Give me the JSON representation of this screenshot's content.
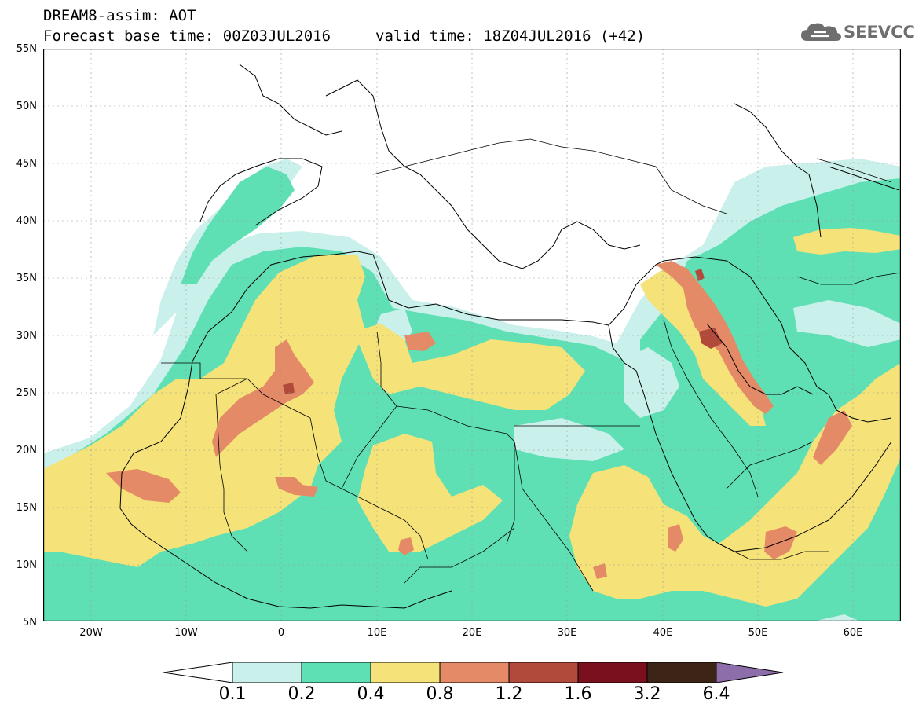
{
  "header": {
    "title": "DREAM8-assim: AOT",
    "base_time": "Forecast base time: 00Z03JUL2016",
    "valid_time": "valid time: 18Z04JUL2016 (+42)"
  },
  "logo": {
    "text": "SEEVCCC",
    "icon": "cloud-icon",
    "color": "#6e6e6e"
  },
  "map": {
    "lat_labels": [
      "55N",
      "50N",
      "45N",
      "40N",
      "35N",
      "30N",
      "25N",
      "20N",
      "15N",
      "10N",
      "5N"
    ],
    "lon_labels": [
      "20W",
      "10W",
      "0",
      "10E",
      "20E",
      "30E",
      "40E",
      "50E",
      "60E"
    ],
    "lat_range": [
      5,
      55
    ],
    "lon_range": [
      -25,
      65
    ],
    "colors": {
      "c0": "#ffffff",
      "c1": "#c9f0ea",
      "c2": "#5ee0b4",
      "c3": "#f5e37a",
      "c4": "#e58a66",
      "c5": "#b24a3c",
      "c6": "#7a0f1e",
      "c7": "#3c2416",
      "over": "#8e6eaa",
      "coast": "#000000"
    }
  },
  "colorbar": {
    "labels": [
      "0.1",
      "0.2",
      "0.4",
      "0.8",
      "1.2",
      "1.6",
      "3.2",
      "6.4"
    ],
    "colors": [
      "#ffffff",
      "#c9f0ea",
      "#5ee0b4",
      "#f5e37a",
      "#e58a66",
      "#b24a3c",
      "#7a0f1e",
      "#3c2416",
      "#8e6eaa"
    ]
  }
}
